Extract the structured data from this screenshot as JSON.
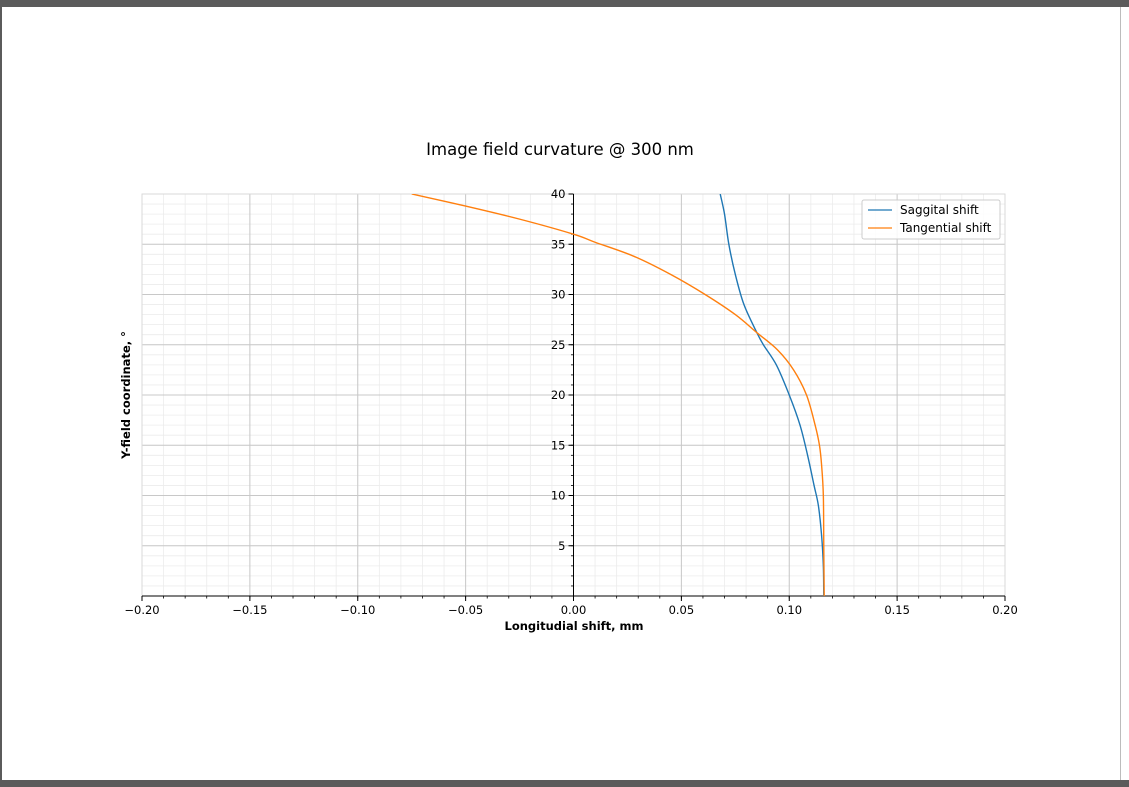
{
  "chart_data": {
    "type": "line",
    "title": "Image field curvature @ 300 nm",
    "xlabel": "Longitudial shift, mm",
    "ylabel": "Y-field coordinate, °",
    "xlim": [
      -0.2,
      0.2
    ],
    "ylim": [
      0,
      40
    ],
    "x_ticks": [
      -0.2,
      -0.15,
      -0.1,
      -0.05,
      0.0,
      0.05,
      0.1,
      0.15,
      0.2
    ],
    "x_tick_labels": [
      "−0.20",
      "−0.15",
      "−0.10",
      "−0.05",
      "0.00",
      "0.05",
      "0.10",
      "0.15",
      "0.20"
    ],
    "y_ticks": [
      5,
      10,
      15,
      20,
      25,
      30,
      35,
      40
    ],
    "y_tick_labels": [
      "5",
      "10",
      "15",
      "20",
      "25",
      "30",
      "35",
      "40"
    ],
    "grid": true,
    "legend_position": "top-right",
    "series": [
      {
        "name": "Saggital shift",
        "color": "#1f77b4",
        "points": [
          [
            0.116,
            0
          ],
          [
            0.1158,
            3
          ],
          [
            0.115,
            6
          ],
          [
            0.1135,
            9
          ],
          [
            0.1115,
            11
          ],
          [
            0.1085,
            14
          ],
          [
            0.105,
            17
          ],
          [
            0.1,
            20
          ],
          [
            0.094,
            23
          ],
          [
            0.088,
            25
          ],
          [
            0.085,
            26.2
          ],
          [
            0.079,
            29
          ],
          [
            0.075,
            32
          ],
          [
            0.072,
            35
          ],
          [
            0.07,
            38
          ],
          [
            0.068,
            40
          ]
        ]
      },
      {
        "name": "Tangential shift",
        "color": "#ff7f0e",
        "points": [
          [
            0.1162,
            0
          ],
          [
            0.116,
            5
          ],
          [
            0.1158,
            10
          ],
          [
            0.115,
            13
          ],
          [
            0.114,
            15
          ],
          [
            0.112,
            17
          ],
          [
            0.108,
            20
          ],
          [
            0.102,
            22.5
          ],
          [
            0.0945,
            24.5
          ],
          [
            0.085,
            26.2
          ],
          [
            0.075,
            28
          ],
          [
            0.061,
            30
          ],
          [
            0.045,
            32
          ],
          [
            0.028,
            33.8
          ],
          [
            0.01,
            35.2
          ],
          [
            0.0,
            36
          ],
          [
            -0.025,
            37.5
          ],
          [
            -0.05,
            38.8
          ],
          [
            -0.075,
            40
          ]
        ]
      }
    ]
  }
}
